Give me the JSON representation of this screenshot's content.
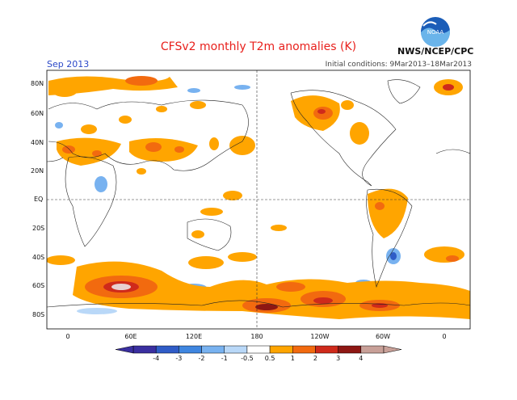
{
  "header": {
    "title": "CFSv2 monthly T2m anomalies (K)",
    "month": "Sep 2013",
    "initial_conditions": "Initial conditions: 9Mar2013–18Mar2013",
    "org": "NWS/NCEP/CPC",
    "logo_text": "NOAA",
    "logo_icon": "noaa-logo"
  },
  "axes": {
    "lat_labels": [
      "80N",
      "60N",
      "40N",
      "20N",
      "EQ",
      "20S",
      "40S",
      "60S",
      "80S"
    ],
    "lon_labels": [
      "0",
      "60E",
      "120E",
      "180",
      "120W",
      "60W",
      "0"
    ]
  },
  "colorbar": {
    "tick_labels": [
      "-4",
      "-3",
      "-2",
      "-1",
      "-0.5",
      "0.5",
      "1",
      "2",
      "3",
      "4"
    ],
    "colors": [
      "#3a2fa0",
      "#2f5cc7",
      "#3f86e0",
      "#78b2f0",
      "#b9d8f8",
      "#ffffff",
      "#ffa500",
      "#f26a0f",
      "#cf2a1b",
      "#8e1713",
      "#c8a098"
    ]
  },
  "colors": {
    "warm_light": "#ffa500",
    "warm_mid": "#f26a0f",
    "warm_dark": "#cf2a1b",
    "warm_darkest": "#8e1713",
    "cool_light": "#78b2f0",
    "cool_mid": "#3f86e0",
    "extreme": "#e8d0d0"
  }
}
